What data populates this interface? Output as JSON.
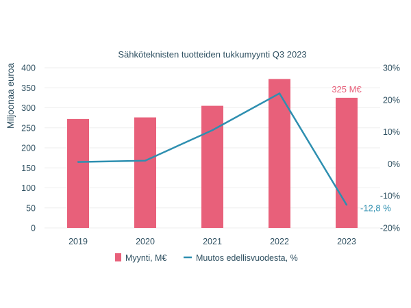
{
  "chart_data": {
    "type": "bar",
    "title": "Sähköteknisten tuotteiden tukkumyynti Q3 2023",
    "ylabel": "Miljoonaa euroa",
    "categories": [
      "2019",
      "2020",
      "2021",
      "2022",
      "2023"
    ],
    "ylim": [
      0,
      400
    ],
    "yticks": [
      "0",
      "50",
      "100",
      "150",
      "200",
      "250",
      "300",
      "350",
      "400"
    ],
    "y2lim": [
      -20,
      30
    ],
    "y2ticks": [
      "-20%",
      "-10%",
      "0%",
      "10%",
      "20%",
      "30%"
    ],
    "series": [
      {
        "name": "Myynti, M€",
        "type": "bar",
        "axis": "left",
        "color": "#e8607a",
        "values": [
          272,
          276,
          305,
          372,
          325
        ]
      },
      {
        "name": "Muutos edellisvuodesta, %",
        "type": "line",
        "axis": "right",
        "color": "#2e8fb0",
        "values": [
          0.6,
          1.0,
          10.5,
          22.0,
          -12.8
        ]
      }
    ],
    "annotations": {
      "bar_last": "325 M€",
      "line_last": "-12,8 %"
    },
    "grid": true,
    "legend": "bottom"
  }
}
